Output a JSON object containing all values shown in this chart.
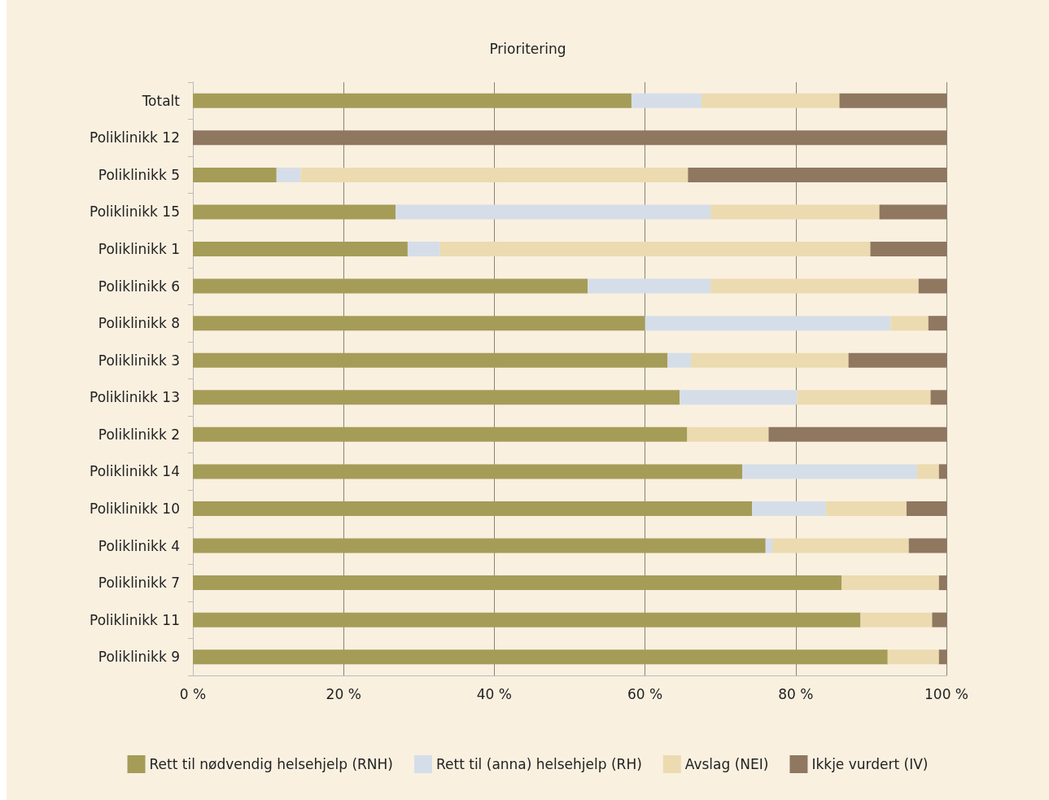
{
  "chart_data": {
    "type": "bar",
    "title": "Prioritering",
    "orientation": "horizontal",
    "stacked": true,
    "grid": "x",
    "legend": "bottom",
    "categories": [
      "Totalt",
      "Poliklinikk 12",
      "Poliklinikk 5",
      "Poliklinikk 15",
      "Poliklinikk 1",
      "Poliklinikk 6",
      "Poliklinikk 8",
      "Poliklinikk 3",
      "Poliklinikk 13",
      "Poliklinikk 2",
      "Poliklinikk 14",
      "Poliklinikk 10",
      "Poliklinikk 4",
      "Poliklinikk 7",
      "Poliklinikk 11",
      "Poliklinikk 9"
    ],
    "xlim": [
      0,
      100
    ],
    "xticks": [
      {
        "value": 0,
        "label": "0 %"
      },
      {
        "value": 20,
        "label": "20 %"
      },
      {
        "value": 40,
        "label": "40 %"
      },
      {
        "value": 60,
        "label": "60 %"
      },
      {
        "value": 80,
        "label": "80 %"
      },
      {
        "value": 100,
        "label": "100 %"
      }
    ],
    "series": [
      {
        "name": "Rett til nødvendig helsehjelp (RNH)",
        "color": "#a59c58",
        "values": [
          58.2,
          0,
          11.1,
          26.9,
          28.5,
          52.4,
          60.0,
          63.0,
          64.6,
          65.6,
          72.9,
          74.2,
          76.0,
          86.1,
          88.6,
          92.2
        ]
      },
      {
        "name": "Rett til (anna) helsehjelp (RH)",
        "color": "#d5dee8",
        "values": [
          9.3,
          0,
          3.2,
          41.8,
          4.3,
          16.3,
          32.6,
          3.1,
          15.6,
          0,
          23.2,
          9.8,
          0.9,
          0,
          0,
          0
        ]
      },
      {
        "name": "Avslag (NEI)",
        "color": "#ecdbb0",
        "values": [
          18.3,
          0,
          51.4,
          22.4,
          57.1,
          27.6,
          5.0,
          20.9,
          17.7,
          10.8,
          2.9,
          10.7,
          18.1,
          12.9,
          9.5,
          6.8
        ]
      },
      {
        "name": "Ikkje vurdert (IV)",
        "color": "#8f7760",
        "values": [
          14.2,
          100,
          34.3,
          8.9,
          10.1,
          3.7,
          2.4,
          13.0,
          2.1,
          23.6,
          1.0,
          5.3,
          5.0,
          1.0,
          1.9,
          1.0
        ]
      }
    ]
  }
}
